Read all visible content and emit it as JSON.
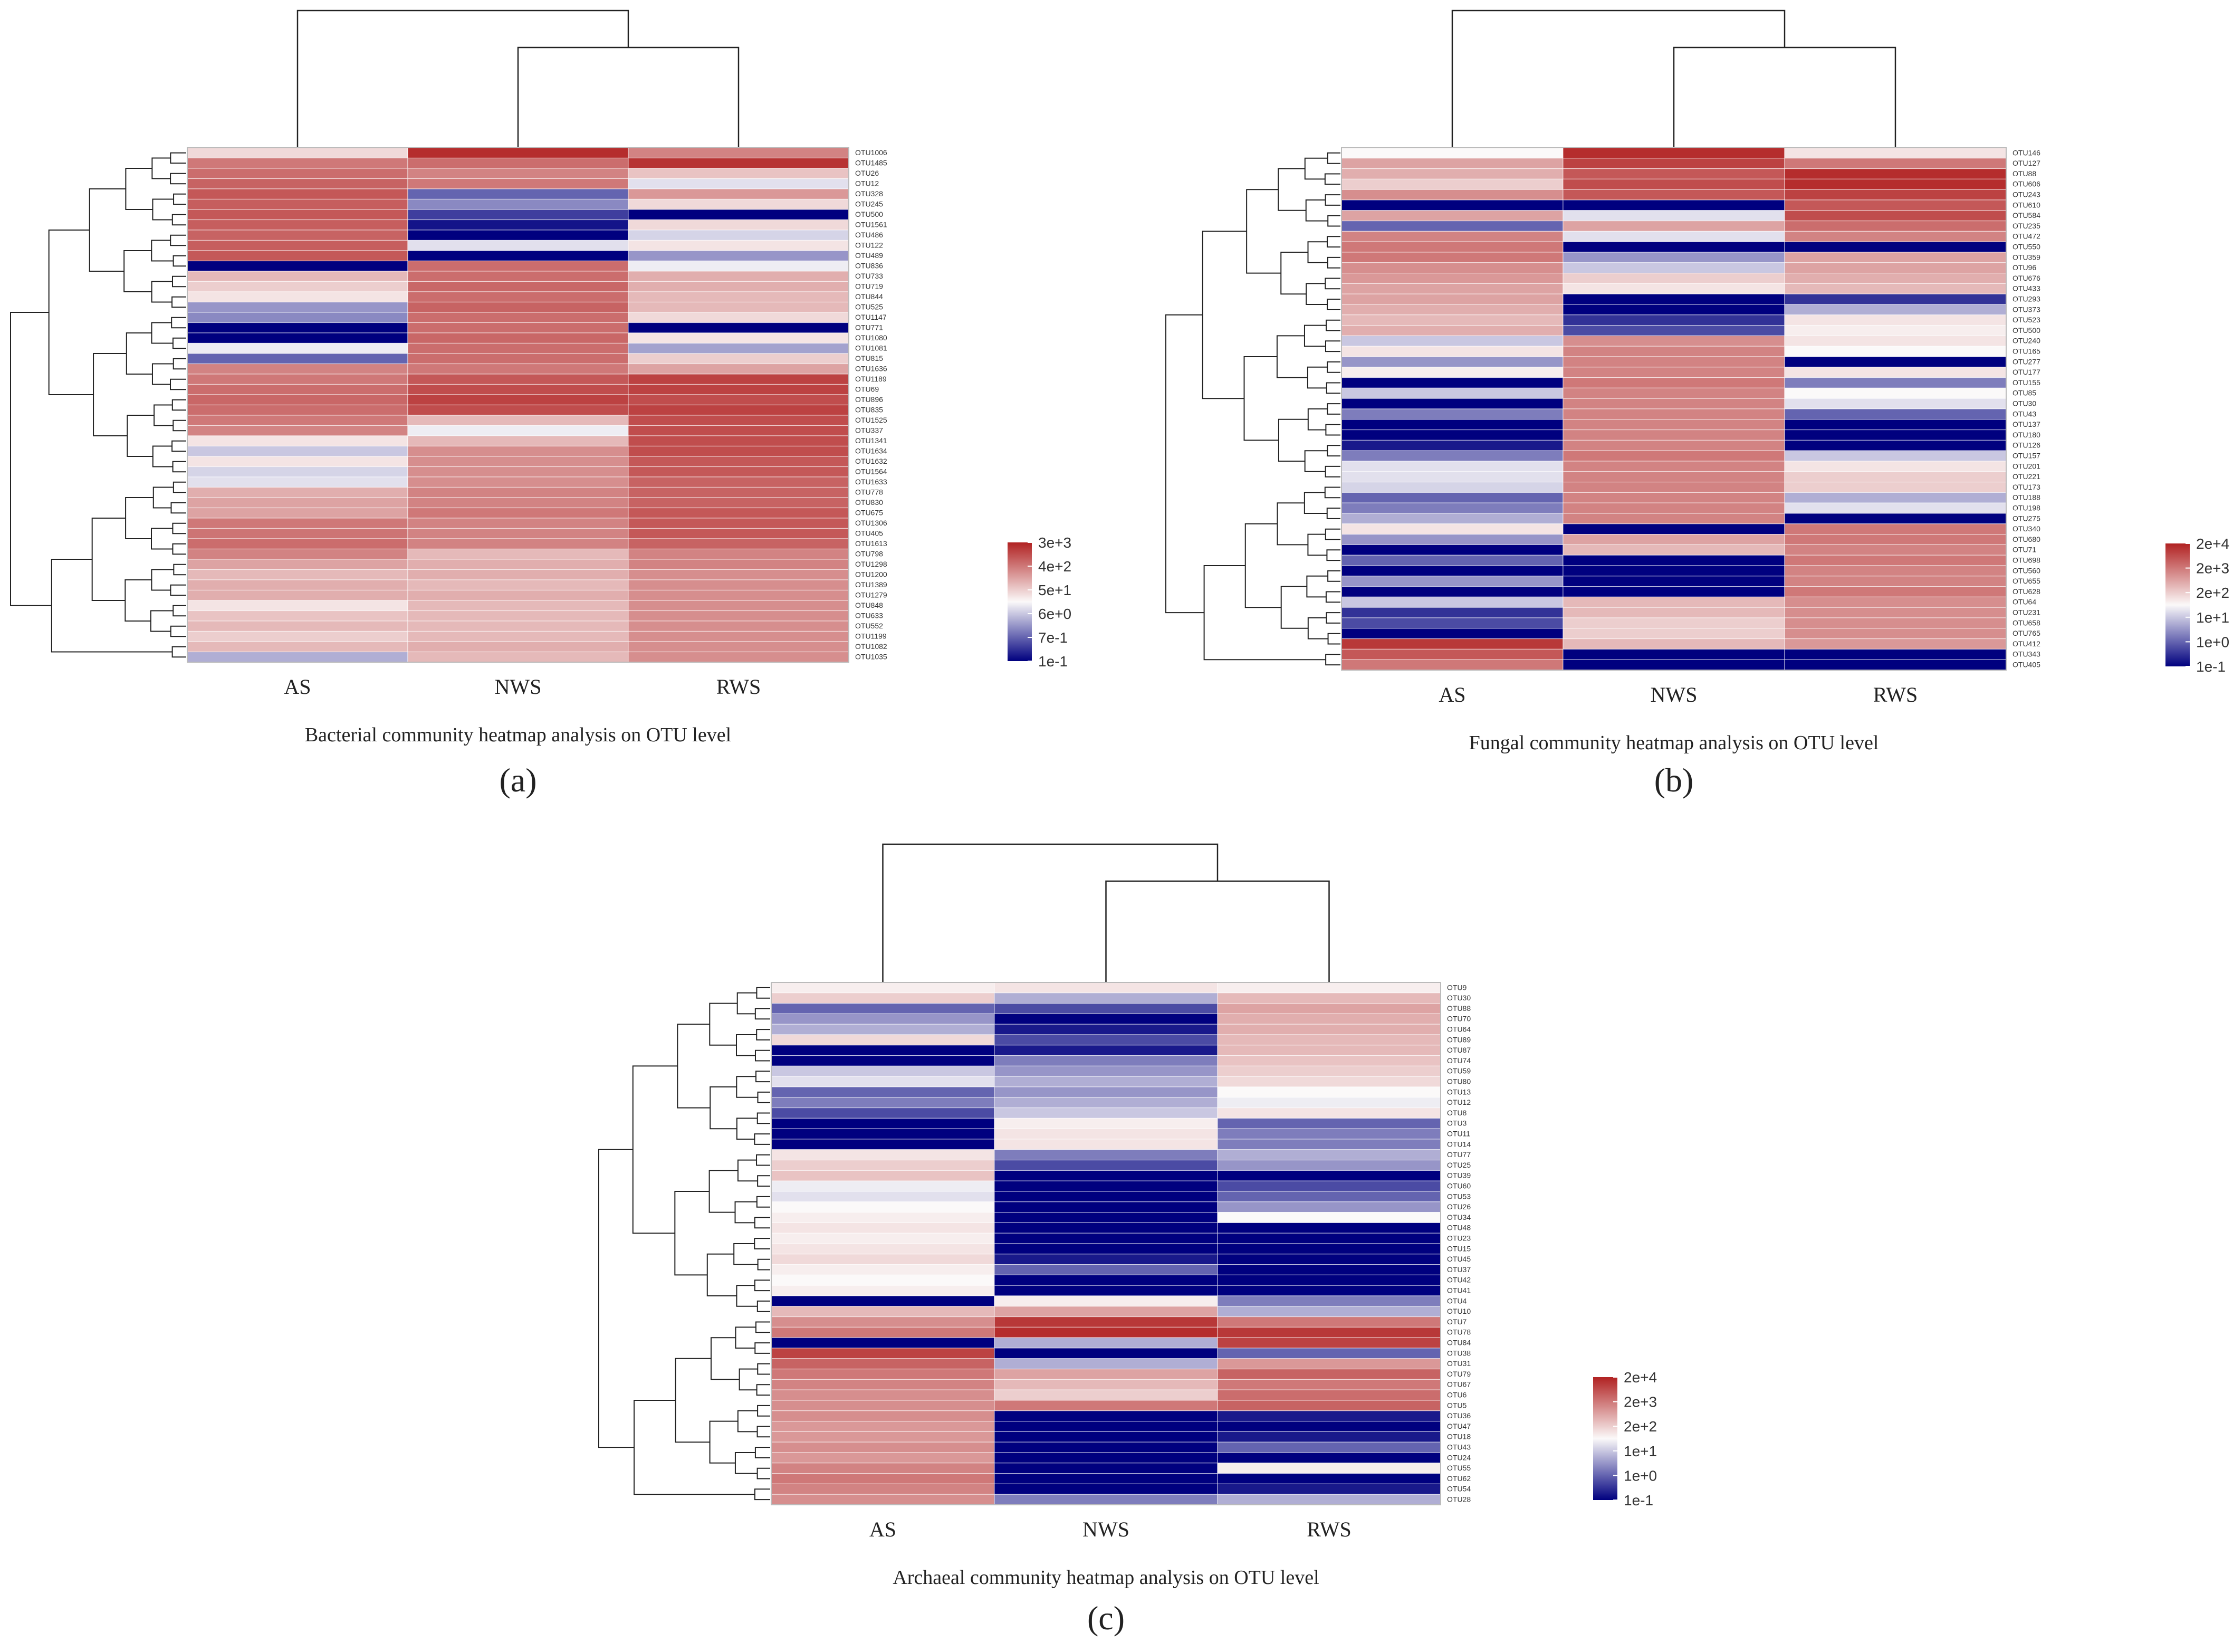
{
  "colors": {
    "low": "#00007f",
    "mid": "#fbf9f9",
    "high": "#b12222"
  },
  "chart_data": [
    {
      "type": "heatmap",
      "panel_label": "(a)",
      "caption": "Bacterial community heatmap analysis on OTU level",
      "columns": [
        "AS",
        "NWS",
        "RWS"
      ],
      "rows": [
        "OTU1006",
        "OTU1485",
        "OTU26",
        "OTU12",
        "OTU328",
        "OTU245",
        "OTU500",
        "OTU1561",
        "OTU486",
        "OTU122",
        "OTU489",
        "OTU836",
        "OTU733",
        "OTU719",
        "OTU844",
        "OTU525",
        "OTU1147",
        "OTU771",
        "OTU1080",
        "OTU1081",
        "OTU815",
        "OTU1636",
        "OTU1189",
        "OTU69",
        "OTU896",
        "OTU835",
        "OTU1525",
        "OTU337",
        "OTU1341",
        "OTU1634",
        "OTU1632",
        "OTU1564",
        "OTU1633",
        "OTU778",
        "OTU830",
        "OTU675",
        "OTU1306",
        "OTU405",
        "OTU1613",
        "OTU798",
        "OTU1298",
        "OTU1200",
        "OTU1389",
        "OTU1279",
        "OTU848",
        "OTU633",
        "OTU552",
        "OTU1199",
        "OTU1082",
        "OTU1035"
      ],
      "values": [
        [
          0.15,
          0.95,
          0.55
        ],
        [
          0.6,
          0.65,
          0.92
        ],
        [
          0.65,
          0.55,
          0.25
        ],
        [
          0.7,
          0.6,
          -0.1
        ],
        [
          0.75,
          -0.6,
          0.45
        ],
        [
          0.72,
          -0.45,
          0.15
        ],
        [
          0.75,
          -0.75,
          -1.0
        ],
        [
          0.72,
          -0.92,
          0.15
        ],
        [
          0.7,
          -1.0,
          -0.15
        ],
        [
          0.72,
          -0.1,
          0.1
        ],
        [
          0.75,
          -1.0,
          -0.4
        ],
        [
          -1.0,
          0.65,
          -0.05
        ],
        [
          0.3,
          0.65,
          0.35
        ],
        [
          0.2,
          0.68,
          0.35
        ],
        [
          0.1,
          0.65,
          0.3
        ],
        [
          -0.4,
          0.7,
          0.3
        ],
        [
          -0.45,
          0.65,
          0.15
        ],
        [
          -1.0,
          0.65,
          -1.0
        ],
        [
          -1.0,
          0.68,
          0.1
        ],
        [
          -0.05,
          0.65,
          -0.35
        ],
        [
          -0.6,
          0.65,
          0.2
        ],
        [
          0.55,
          0.6,
          0.4
        ],
        [
          0.6,
          0.75,
          0.85
        ],
        [
          0.65,
          0.8,
          0.85
        ],
        [
          0.68,
          0.85,
          0.8
        ],
        [
          0.65,
          0.8,
          0.85
        ],
        [
          0.6,
          0.3,
          0.8
        ],
        [
          0.55,
          -0.05,
          0.8
        ],
        [
          0.1,
          0.3,
          0.8
        ],
        [
          -0.2,
          0.5,
          0.8
        ],
        [
          0.1,
          0.5,
          0.75
        ],
        [
          -0.15,
          0.5,
          0.75
        ],
        [
          -0.1,
          0.5,
          0.7
        ],
        [
          0.35,
          0.55,
          0.7
        ],
        [
          0.4,
          0.55,
          0.7
        ],
        [
          0.4,
          0.6,
          0.75
        ],
        [
          0.6,
          0.55,
          0.75
        ],
        [
          0.62,
          0.55,
          0.75
        ],
        [
          0.65,
          0.55,
          0.7
        ],
        [
          0.55,
          0.3,
          0.55
        ],
        [
          0.4,
          0.35,
          0.55
        ],
        [
          0.3,
          0.35,
          0.5
        ],
        [
          0.35,
          0.3,
          0.5
        ],
        [
          0.35,
          0.35,
          0.5
        ],
        [
          0.1,
          0.3,
          0.5
        ],
        [
          0.25,
          0.3,
          0.5
        ],
        [
          0.3,
          0.3,
          0.5
        ],
        [
          0.2,
          0.3,
          0.5
        ],
        [
          0.3,
          0.35,
          0.5
        ],
        [
          -0.3,
          0.3,
          0.5
        ]
      ],
      "legend": {
        "labels": [
          "3e+3",
          "4e+2",
          "5e+1",
          "6e+0",
          "7e-1",
          "1e-1"
        ]
      }
    },
    {
      "type": "heatmap",
      "panel_label": "(b)",
      "caption": "Fungal community heatmap analysis on OTU level",
      "columns": [
        "AS",
        "NWS",
        "RWS"
      ],
      "rows": [
        "OTU146",
        "OTU127",
        "OTU88",
        "OTU606",
        "OTU243",
        "OTU610",
        "OTU584",
        "OTU235",
        "OTU472",
        "OTU550",
        "OTU359",
        "OTU96",
        "OTU676",
        "OTU433",
        "OTU293",
        "OTU373",
        "OTU523",
        "OTU500",
        "OTU240",
        "OTU165",
        "OTU277",
        "OTU177",
        "OTU155",
        "OTU85",
        "OTU30",
        "OTU43",
        "OTU137",
        "OTU180",
        "OTU126",
        "OTU157",
        "OTU201",
        "OTU221",
        "OTU173",
        "OTU188",
        "OTU198",
        "OTU275",
        "OTU340",
        "OTU680",
        "OTU71",
        "OTU698",
        "OTU560",
        "OTU655",
        "OTU628",
        "OTU64",
        "OTU231",
        "OTU658",
        "OTU765",
        "OTU412",
        "OTU343",
        "OTU405"
      ],
      "values": [
        [
          0.0,
          0.95,
          0.1
        ],
        [
          0.4,
          0.85,
          0.6
        ],
        [
          0.35,
          0.75,
          0.95
        ],
        [
          0.2,
          0.8,
          0.95
        ],
        [
          0.5,
          0.75,
          0.85
        ],
        [
          -1.0,
          -1.0,
          0.75
        ],
        [
          0.4,
          -0.1,
          0.8
        ],
        [
          -0.6,
          0.4,
          0.65
        ],
        [
          0.55,
          -0.1,
          0.55
        ],
        [
          0.6,
          -1.0,
          -1.0
        ],
        [
          0.6,
          -0.4,
          0.4
        ],
        [
          0.5,
          -0.2,
          0.4
        ],
        [
          0.45,
          0.2,
          0.35
        ],
        [
          0.4,
          0.1,
          0.3
        ],
        [
          0.4,
          -1.0,
          -0.8
        ],
        [
          0.35,
          -1.0,
          -0.3
        ],
        [
          0.3,
          -0.8,
          0.1
        ],
        [
          0.35,
          -0.7,
          0.05
        ],
        [
          -0.2,
          0.5,
          0.1
        ],
        [
          0.1,
          0.55,
          0.0
        ],
        [
          -0.4,
          0.55,
          -1.0
        ],
        [
          0.05,
          0.55,
          0.1
        ],
        [
          -1.0,
          0.6,
          -0.5
        ],
        [
          -0.2,
          0.55,
          0.0
        ],
        [
          -1.0,
          0.55,
          -0.1
        ],
        [
          -0.5,
          0.55,
          -0.6
        ],
        [
          -1.0,
          0.55,
          -1.0
        ],
        [
          -1.0,
          0.55,
          -1.0
        ],
        [
          -0.9,
          0.55,
          -1.0
        ],
        [
          -0.5,
          0.6,
          -0.2
        ],
        [
          -0.1,
          0.55,
          0.1
        ],
        [
          -0.1,
          0.55,
          0.2
        ],
        [
          -0.15,
          0.55,
          0.2
        ],
        [
          -0.6,
          0.55,
          -0.3
        ],
        [
          -0.5,
          0.55,
          -0.1
        ],
        [
          -0.3,
          0.55,
          -1.0
        ],
        [
          0.1,
          -1.0,
          0.6
        ],
        [
          -0.4,
          0.4,
          0.6
        ],
        [
          -1.0,
          0.3,
          0.55
        ],
        [
          -0.6,
          -1.0,
          0.6
        ],
        [
          -1.0,
          -1.0,
          0.55
        ],
        [
          -0.4,
          -1.0,
          0.55
        ],
        [
          -1.0,
          -1.0,
          0.6
        ],
        [
          -0.2,
          0.3,
          0.5
        ],
        [
          -0.8,
          0.3,
          0.5
        ],
        [
          -0.7,
          0.2,
          0.5
        ],
        [
          -1.0,
          0.2,
          0.5
        ],
        [
          0.9,
          0.3,
          0.45
        ],
        [
          0.75,
          -1.0,
          -1.0
        ],
        [
          0.6,
          -1.0,
          -1.0
        ]
      ],
      "legend": {
        "labels": [
          "2e+4",
          "2e+3",
          "2e+2",
          "1e+1",
          "1e+0",
          "1e-1"
        ]
      }
    },
    {
      "type": "heatmap",
      "panel_label": "(c)",
      "caption": "Archaeal community heatmap analysis on OTU level",
      "columns": [
        "AS",
        "NWS",
        "RWS"
      ],
      "rows": [
        "OTU9",
        "OTU30",
        "OTU88",
        "OTU70",
        "OTU64",
        "OTU89",
        "OTU87",
        "OTU74",
        "OTU59",
        "OTU80",
        "OTU13",
        "OTU12",
        "OTU8",
        "OTU3",
        "OTU11",
        "OTU14",
        "OTU77",
        "OTU25",
        "OTU39",
        "OTU60",
        "OTU53",
        "OTU26",
        "OTU34",
        "OTU48",
        "OTU23",
        "OTU15",
        "OTU45",
        "OTU37",
        "OTU42",
        "OTU41",
        "OTU4",
        "OTU10",
        "OTU7",
        "OTU78",
        "OTU84",
        "OTU38",
        "OTU31",
        "OTU79",
        "OTU67",
        "OTU6",
        "OTU5",
        "OTU36",
        "OTU47",
        "OTU18",
        "OTU43",
        "OTU24",
        "OTU55",
        "OTU62",
        "OTU54",
        "OTU28"
      ],
      "values": [
        [
          0.05,
          0.1,
          0.05
        ],
        [
          0.2,
          -0.3,
          0.3
        ],
        [
          -0.6,
          -0.7,
          0.4
        ],
        [
          -0.4,
          -1.0,
          0.35
        ],
        [
          -0.3,
          -0.9,
          0.35
        ],
        [
          0.15,
          -0.7,
          0.3
        ],
        [
          -1.0,
          -0.9,
          0.3
        ],
        [
          -1.0,
          -0.5,
          0.25
        ],
        [
          -0.2,
          -0.4,
          0.2
        ],
        [
          -0.1,
          -0.3,
          0.15
        ],
        [
          -0.6,
          -0.4,
          0.0
        ],
        [
          -0.5,
          -0.3,
          -0.05
        ],
        [
          -0.7,
          -0.2,
          0.1
        ],
        [
          -1.0,
          0.05,
          -0.6
        ],
        [
          -1.0,
          0.1,
          -0.5
        ],
        [
          -1.0,
          0.1,
          -0.5
        ],
        [
          0.1,
          -0.5,
          -0.3
        ],
        [
          0.2,
          -0.7,
          -0.4
        ],
        [
          0.25,
          -1.0,
          -1.0
        ],
        [
          -0.05,
          -1.0,
          -0.7
        ],
        [
          -0.1,
          -1.0,
          -0.6
        ],
        [
          0.0,
          -1.0,
          -0.4
        ],
        [
          0.05,
          -1.0,
          0.0
        ],
        [
          0.1,
          -1.0,
          -1.0
        ],
        [
          0.05,
          -1.0,
          -1.0
        ],
        [
          0.1,
          -1.0,
          -1.0
        ],
        [
          0.15,
          -0.9,
          -1.0
        ],
        [
          0.05,
          -0.6,
          -1.0
        ],
        [
          0.0,
          -1.0,
          -1.0
        ],
        [
          0.05,
          -1.0,
          -1.0
        ],
        [
          -1.0,
          0.05,
          -0.5
        ],
        [
          0.3,
          0.4,
          -0.3
        ],
        [
          0.5,
          0.9,
          0.6
        ],
        [
          0.6,
          0.95,
          0.9
        ],
        [
          -1.0,
          -0.3,
          0.85
        ],
        [
          0.85,
          -1.0,
          -0.6
        ],
        [
          0.7,
          -0.3,
          0.45
        ],
        [
          0.6,
          0.4,
          0.7
        ],
        [
          0.55,
          0.3,
          0.6
        ],
        [
          0.5,
          0.2,
          0.65
        ],
        [
          0.5,
          0.6,
          0.7
        ],
        [
          0.5,
          -1.0,
          -0.9
        ],
        [
          0.45,
          -1.0,
          -1.0
        ],
        [
          0.45,
          -1.0,
          -0.9
        ],
        [
          0.5,
          -1.0,
          -0.6
        ],
        [
          0.45,
          -1.0,
          -1.0
        ],
        [
          0.55,
          -1.0,
          0.05
        ],
        [
          0.6,
          -1.0,
          -1.0
        ],
        [
          0.55,
          -1.0,
          -0.9
        ],
        [
          0.5,
          -0.5,
          -0.3
        ]
      ],
      "legend": {
        "labels": [
          "2e+4",
          "2e+3",
          "2e+2",
          "1e+1",
          "1e+0",
          "1e-1"
        ]
      }
    }
  ]
}
